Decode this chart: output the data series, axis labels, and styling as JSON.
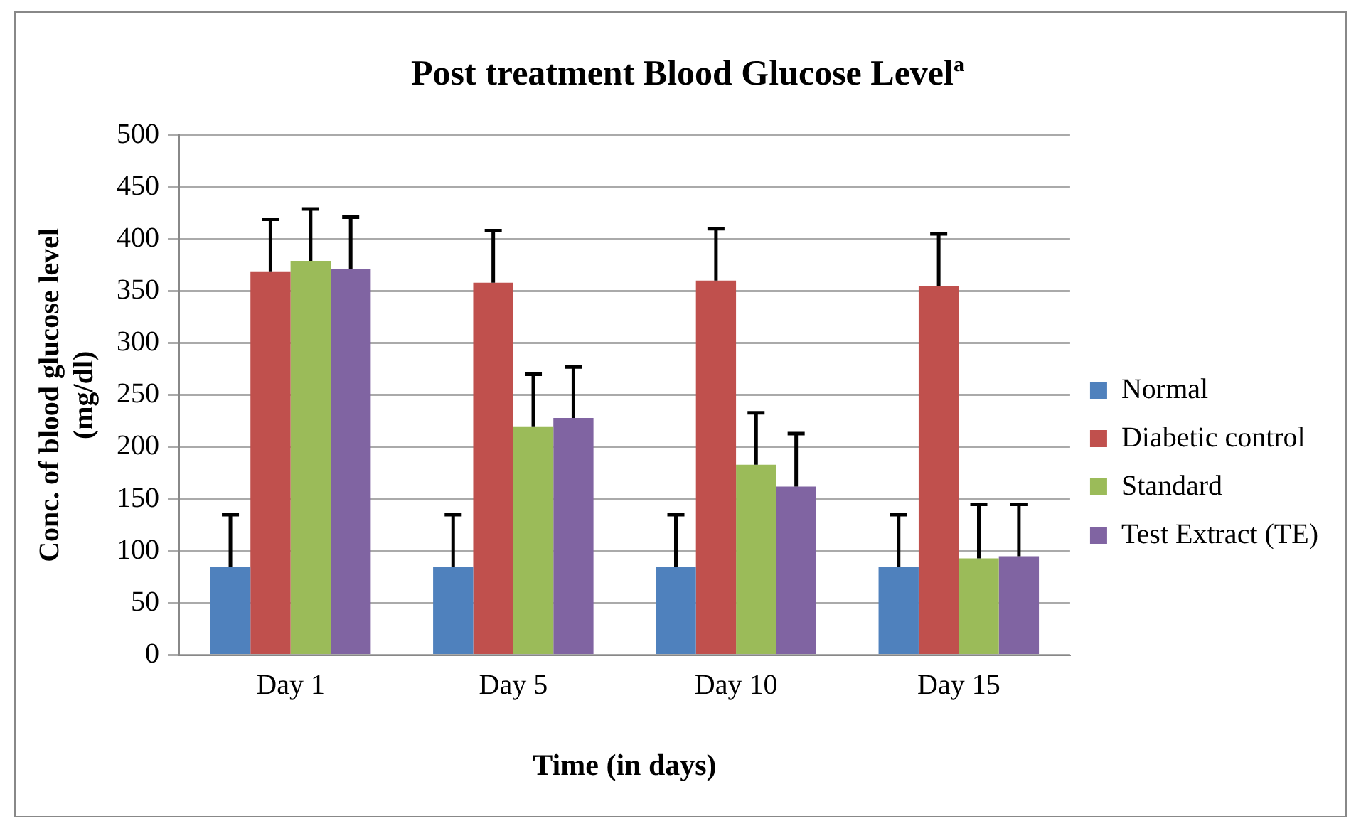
{
  "chart_data": {
    "type": "bar",
    "title": "Post treatment Blood Glucose Level$^{a}$",
    "xlabel": "Time (in days)",
    "ylabel": "Conc. of blood glucose level (mg/dl)",
    "categories": [
      "Day 1",
      "Day 5",
      "Day 10",
      "Day 15"
    ],
    "series": [
      {
        "name": "Normal",
        "color": "#4f81bd",
        "values": [
          85,
          85,
          85,
          85
        ],
        "errors": [
          [
            85,
            135
          ],
          [
            85,
            135
          ],
          [
            85,
            135
          ],
          [
            85,
            135
          ]
        ]
      },
      {
        "name": "Diabetic control",
        "color": "#c0504d",
        "values": [
          369,
          358,
          360,
          355
        ],
        "errors": [
          [
            369,
            419
          ],
          [
            358,
            408
          ],
          [
            360,
            410
          ],
          [
            355,
            405
          ]
        ]
      },
      {
        "name": "Standard",
        "color": "#9bbb59",
        "values": [
          379,
          220,
          183,
          93
        ],
        "errors": [
          [
            379,
            429
          ],
          [
            220,
            270
          ],
          [
            183,
            233
          ],
          [
            93,
            145
          ]
        ]
      },
      {
        "name": "Test Extract (TE)",
        "color": "#8064a2",
        "values": [
          371,
          228,
          162,
          95
        ],
        "errors": [
          [
            371,
            421
          ],
          [
            228,
            277
          ],
          [
            162,
            213
          ],
          [
            95,
            145
          ]
        ]
      }
    ],
    "ylim": [
      0,
      500
    ],
    "yticks": [
      0,
      50,
      100,
      150,
      200,
      250,
      300,
      350,
      400,
      450,
      500
    ],
    "grid": "y",
    "legend": "right"
  }
}
